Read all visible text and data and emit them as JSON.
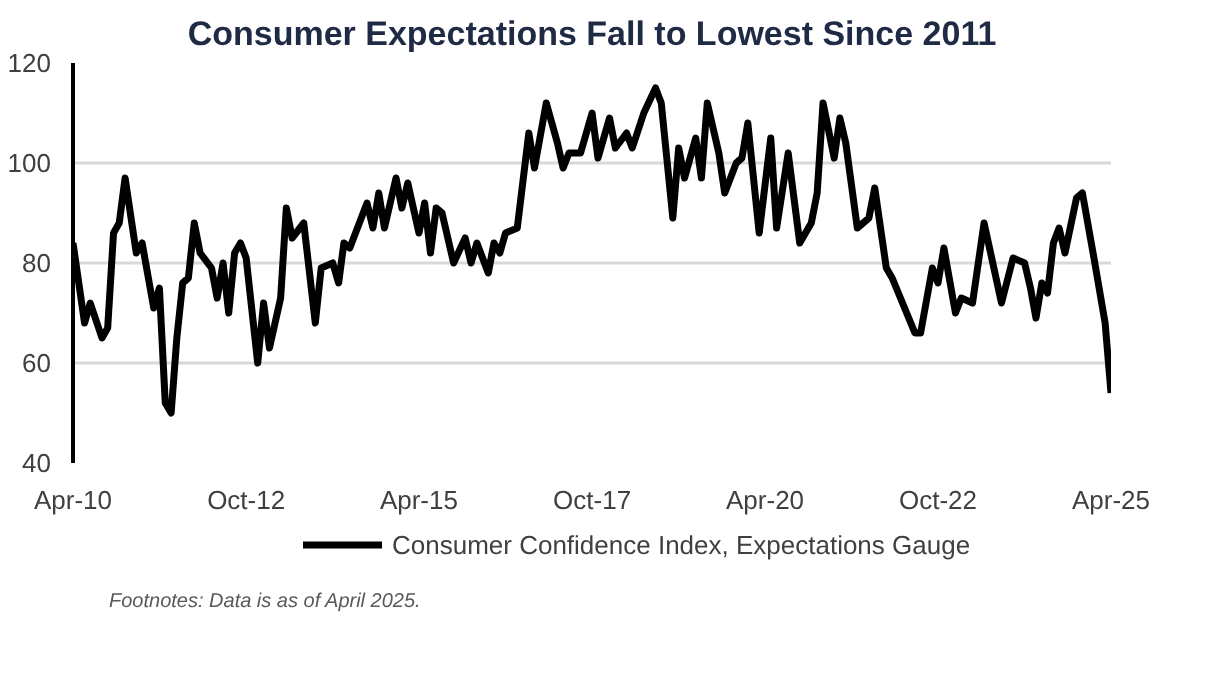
{
  "chart_data": {
    "type": "line",
    "title": "Consumer Expectations Fall to Lowest Since 2011",
    "x": [
      "2010-04",
      "2010-06",
      "2010-07",
      "2010-09",
      "2010-10",
      "2010-11",
      "2010-12",
      "2011-01",
      "2011-03",
      "2011-04",
      "2011-06",
      "2011-07",
      "2011-08",
      "2011-09",
      "2011-10",
      "2011-11",
      "2011-12",
      "2012-01",
      "2012-02",
      "2012-04",
      "2012-05",
      "2012-06",
      "2012-07",
      "2012-08",
      "2012-09",
      "2012-10",
      "2012-12",
      "2013-01",
      "2013-02",
      "2013-04",
      "2013-05",
      "2013-06",
      "2013-08",
      "2013-10",
      "2013-11",
      "2014-01",
      "2014-02",
      "2014-03",
      "2014-04",
      "2014-07",
      "2014-08",
      "2014-09",
      "2014-10",
      "2014-12",
      "2015-01",
      "2015-02",
      "2015-04",
      "2015-05",
      "2015-06",
      "2015-07",
      "2015-08",
      "2015-10",
      "2015-12",
      "2016-01",
      "2016-02",
      "2016-04",
      "2016-05",
      "2016-06",
      "2016-07",
      "2016-09",
      "2016-11",
      "2016-12",
      "2017-02",
      "2017-04",
      "2017-05",
      "2017-06",
      "2017-08",
      "2017-10",
      "2017-11",
      "2018-01",
      "2018-02",
      "2018-04",
      "2018-05",
      "2018-07",
      "2018-09",
      "2018-10",
      "2018-12",
      "2019-01",
      "2019-02",
      "2019-04",
      "2019-05",
      "2019-06",
      "2019-08",
      "2019-09",
      "2019-11",
      "2019-12",
      "2020-01",
      "2020-03",
      "2020-05",
      "2020-06",
      "2020-08",
      "2020-10",
      "2020-12",
      "2021-01",
      "2021-02",
      "2021-04",
      "2021-05",
      "2021-06",
      "2021-08",
      "2021-10",
      "2021-11",
      "2022-01",
      "2022-02",
      "2022-06",
      "2022-07",
      "2022-09",
      "2022-10",
      "2022-11",
      "2023-01",
      "2023-02",
      "2023-04",
      "2023-06",
      "2023-09",
      "2023-11",
      "2024-01",
      "2024-02",
      "2024-03",
      "2024-04",
      "2024-05",
      "2024-06",
      "2024-07",
      "2024-08",
      "2024-10",
      "2024-11",
      "2025-01",
      "2025-03",
      "2025-04"
    ],
    "series": [
      {
        "name": "Consumer Confidence Index, Expectations Gauge",
        "color": "#000000",
        "values": [
          84,
          68,
          72,
          65,
          67,
          86,
          88,
          97,
          82,
          84,
          71,
          75,
          52,
          50,
          65,
          76,
          77,
          88,
          82,
          79,
          73,
          80,
          70,
          82,
          84,
          81,
          60,
          72,
          63,
          73,
          91,
          85,
          88,
          68,
          79,
          80,
          76,
          84,
          83,
          92,
          87,
          94,
          87,
          97,
          91,
          96,
          86,
          92,
          82,
          91,
          90,
          80,
          85,
          80,
          84,
          78,
          84,
          82,
          86,
          87,
          106,
          99,
          112,
          104,
          99,
          102,
          102,
          110,
          101,
          109,
          103,
          106,
          103,
          110,
          115,
          112,
          89,
          103,
          97,
          105,
          97,
          112,
          102,
          94,
          100,
          101,
          108,
          86,
          105,
          87,
          102,
          84,
          88,
          94,
          112,
          101,
          109,
          104,
          87,
          89,
          95,
          79,
          77,
          66,
          66,
          79,
          76,
          83,
          70,
          73,
          72,
          88,
          72,
          81,
          80,
          75,
          69,
          76,
          74,
          84,
          87,
          82,
          93,
          94,
          81,
          68,
          54
        ]
      }
    ],
    "xlim": [
      "2010-04",
      "2025-04"
    ],
    "xticks": [
      {
        "value": "2010-04",
        "label": "Apr-10"
      },
      {
        "value": "2012-10",
        "label": "Oct-12"
      },
      {
        "value": "2015-04",
        "label": "Apr-15"
      },
      {
        "value": "2017-10",
        "label": "Oct-17"
      },
      {
        "value": "2020-04",
        "label": "Apr-20"
      },
      {
        "value": "2022-10",
        "label": "Oct-22"
      },
      {
        "value": "2025-04",
        "label": "Apr-25"
      }
    ],
    "ylim": [
      40,
      120
    ],
    "yticks": [
      40,
      60,
      80,
      100,
      120
    ],
    "grid": "y",
    "legend": "bottom",
    "line_style": "solid",
    "annotations": [
      "Footnotes: Data is as of April 2025."
    ]
  }
}
